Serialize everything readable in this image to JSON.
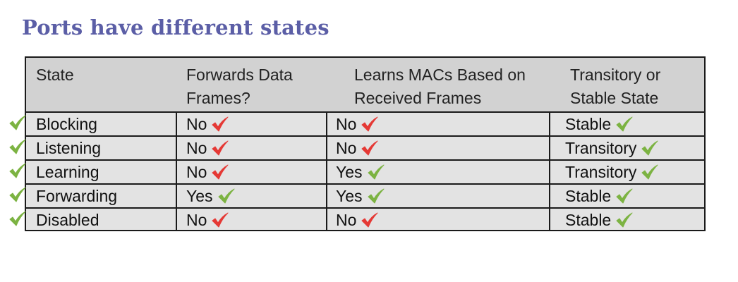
{
  "title": "Ports have different states",
  "headers": [
    "State",
    "Forwards Data\nFrames?",
    "Learns MACs Based on\nReceived Frames",
    "Transitory or\nStable State"
  ],
  "rows": [
    {
      "state": "Blocking",
      "forwards": "No",
      "forwards_mark": "red-check",
      "learns": "No",
      "learns_mark": "red-check",
      "stability": "Stable",
      "stability_mark": "green-check"
    },
    {
      "state": "Listening",
      "forwards": "No",
      "forwards_mark": "red-check",
      "learns": "No",
      "learns_mark": "red-check",
      "stability": "Transitory",
      "stability_mark": "green-check"
    },
    {
      "state": "Learning",
      "forwards": "No",
      "forwards_mark": "red-check",
      "learns": "Yes",
      "learns_mark": "green-check",
      "stability": "Transitory",
      "stability_mark": "green-check"
    },
    {
      "state": "Forwarding",
      "forwards": "Yes",
      "forwards_mark": "green-check",
      "learns": "Yes",
      "learns_mark": "green-check",
      "stability": "Stable",
      "stability_mark": "green-check"
    },
    {
      "state": "Disabled",
      "forwards": "No",
      "forwards_mark": "red-check",
      "learns": "No",
      "learns_mark": "red-check",
      "stability": "Stable",
      "stability_mark": "green-check"
    }
  ],
  "colors": {
    "title": "#5b5ea6",
    "green_check": "#7cb342",
    "red_check": "#e53935",
    "header_bg": "#d2d2d2",
    "row_bg": "#e3e3e3"
  }
}
